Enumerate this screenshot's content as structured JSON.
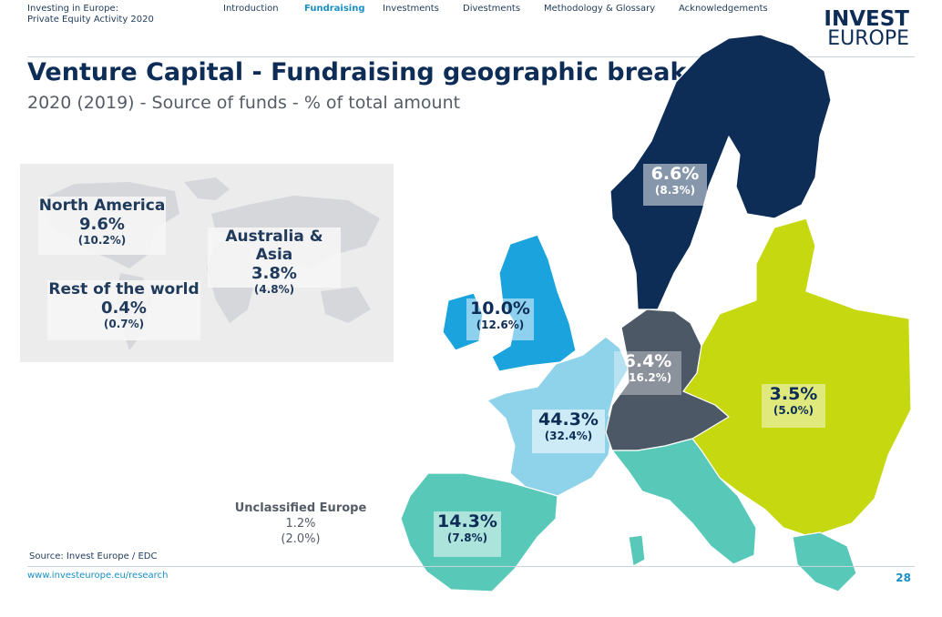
{
  "header": {
    "report_line1": "Investing in Europe:",
    "report_line2": "Private Equity Activity 2020",
    "nav": [
      "Introduction",
      "Fundraising",
      "Investments",
      "Divestments",
      "Methodology & Glossary",
      "Acknowledgements"
    ],
    "active_nav": "Fundraising",
    "logo_line1": "INVEST",
    "logo_line2": "EUROPE"
  },
  "title": "Venture Capital - Fundraising geographic breakdown",
  "subtitle": "2020 (2019) - Source of funds - % of total amount",
  "chart_data": {
    "type": "choropleth-map",
    "title": "Venture Capital - Fundraising geographic breakdown",
    "subtitle": "2020 (2019) - Source of funds - % of total amount",
    "units": "% of total amount",
    "regions": [
      {
        "id": "nordics",
        "value_2020": "6.6%",
        "value_2019": "(8.3%)",
        "color": "#0d2d57"
      },
      {
        "id": "uk-ireland",
        "value_2020": "10.0%",
        "value_2019": "(12.6%)",
        "color": "#1aa3dc"
      },
      {
        "id": "dach",
        "value_2020": "6.4%",
        "value_2019": "(16.2%)",
        "color": "#4d5866"
      },
      {
        "id": "cee",
        "value_2020": "3.5%",
        "value_2019": "(5.0%)",
        "color": "#c6d80f"
      },
      {
        "id": "france-benelux",
        "value_2020": "44.3%",
        "value_2019": "(32.4%)",
        "color": "#8fd3ea"
      },
      {
        "id": "southern-europe",
        "value_2020": "14.3%",
        "value_2019": "(7.8%)",
        "color": "#58c9b8"
      }
    ],
    "outside_europe": [
      {
        "name": "North America",
        "value_2020": "9.6%",
        "value_2019": "(10.2%)"
      },
      {
        "name": "Australia & Asia",
        "value_2020": "3.8%",
        "value_2019": "(4.8%)"
      },
      {
        "name": "Rest of the world",
        "value_2020": "0.4%",
        "value_2019": "(0.7%)"
      }
    ],
    "unclassified": {
      "name": "Unclassified Europe",
      "value_2020": "1.2%",
      "value_2019": "(2.0%)"
    }
  },
  "footer": {
    "source": "Source: Invest Europe / EDC",
    "url": "www.investeurope.eu/research",
    "page": "28"
  }
}
